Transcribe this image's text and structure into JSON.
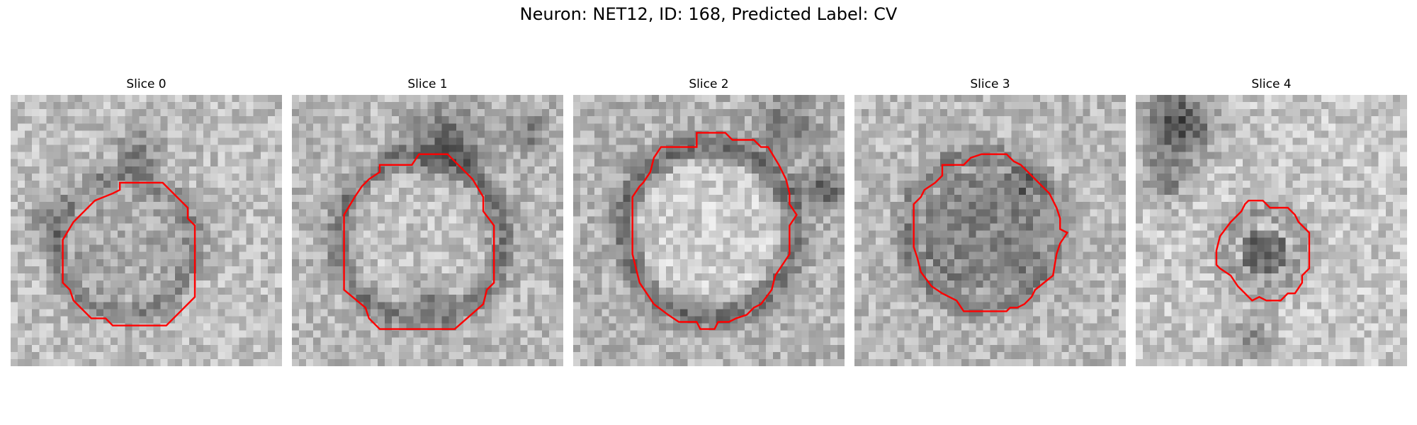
{
  "figure": {
    "title": "Neuron: NET12, ID: 168, Predicted Label: CV"
  },
  "panels": [
    {
      "title": "Slice 0"
    },
    {
      "title": "Slice 1"
    },
    {
      "title": "Slice 2"
    },
    {
      "title": "Slice 3"
    },
    {
      "title": "Slice 4"
    }
  ],
  "colors": {
    "contour": "#ff0000",
    "background": "#ffffff"
  }
}
